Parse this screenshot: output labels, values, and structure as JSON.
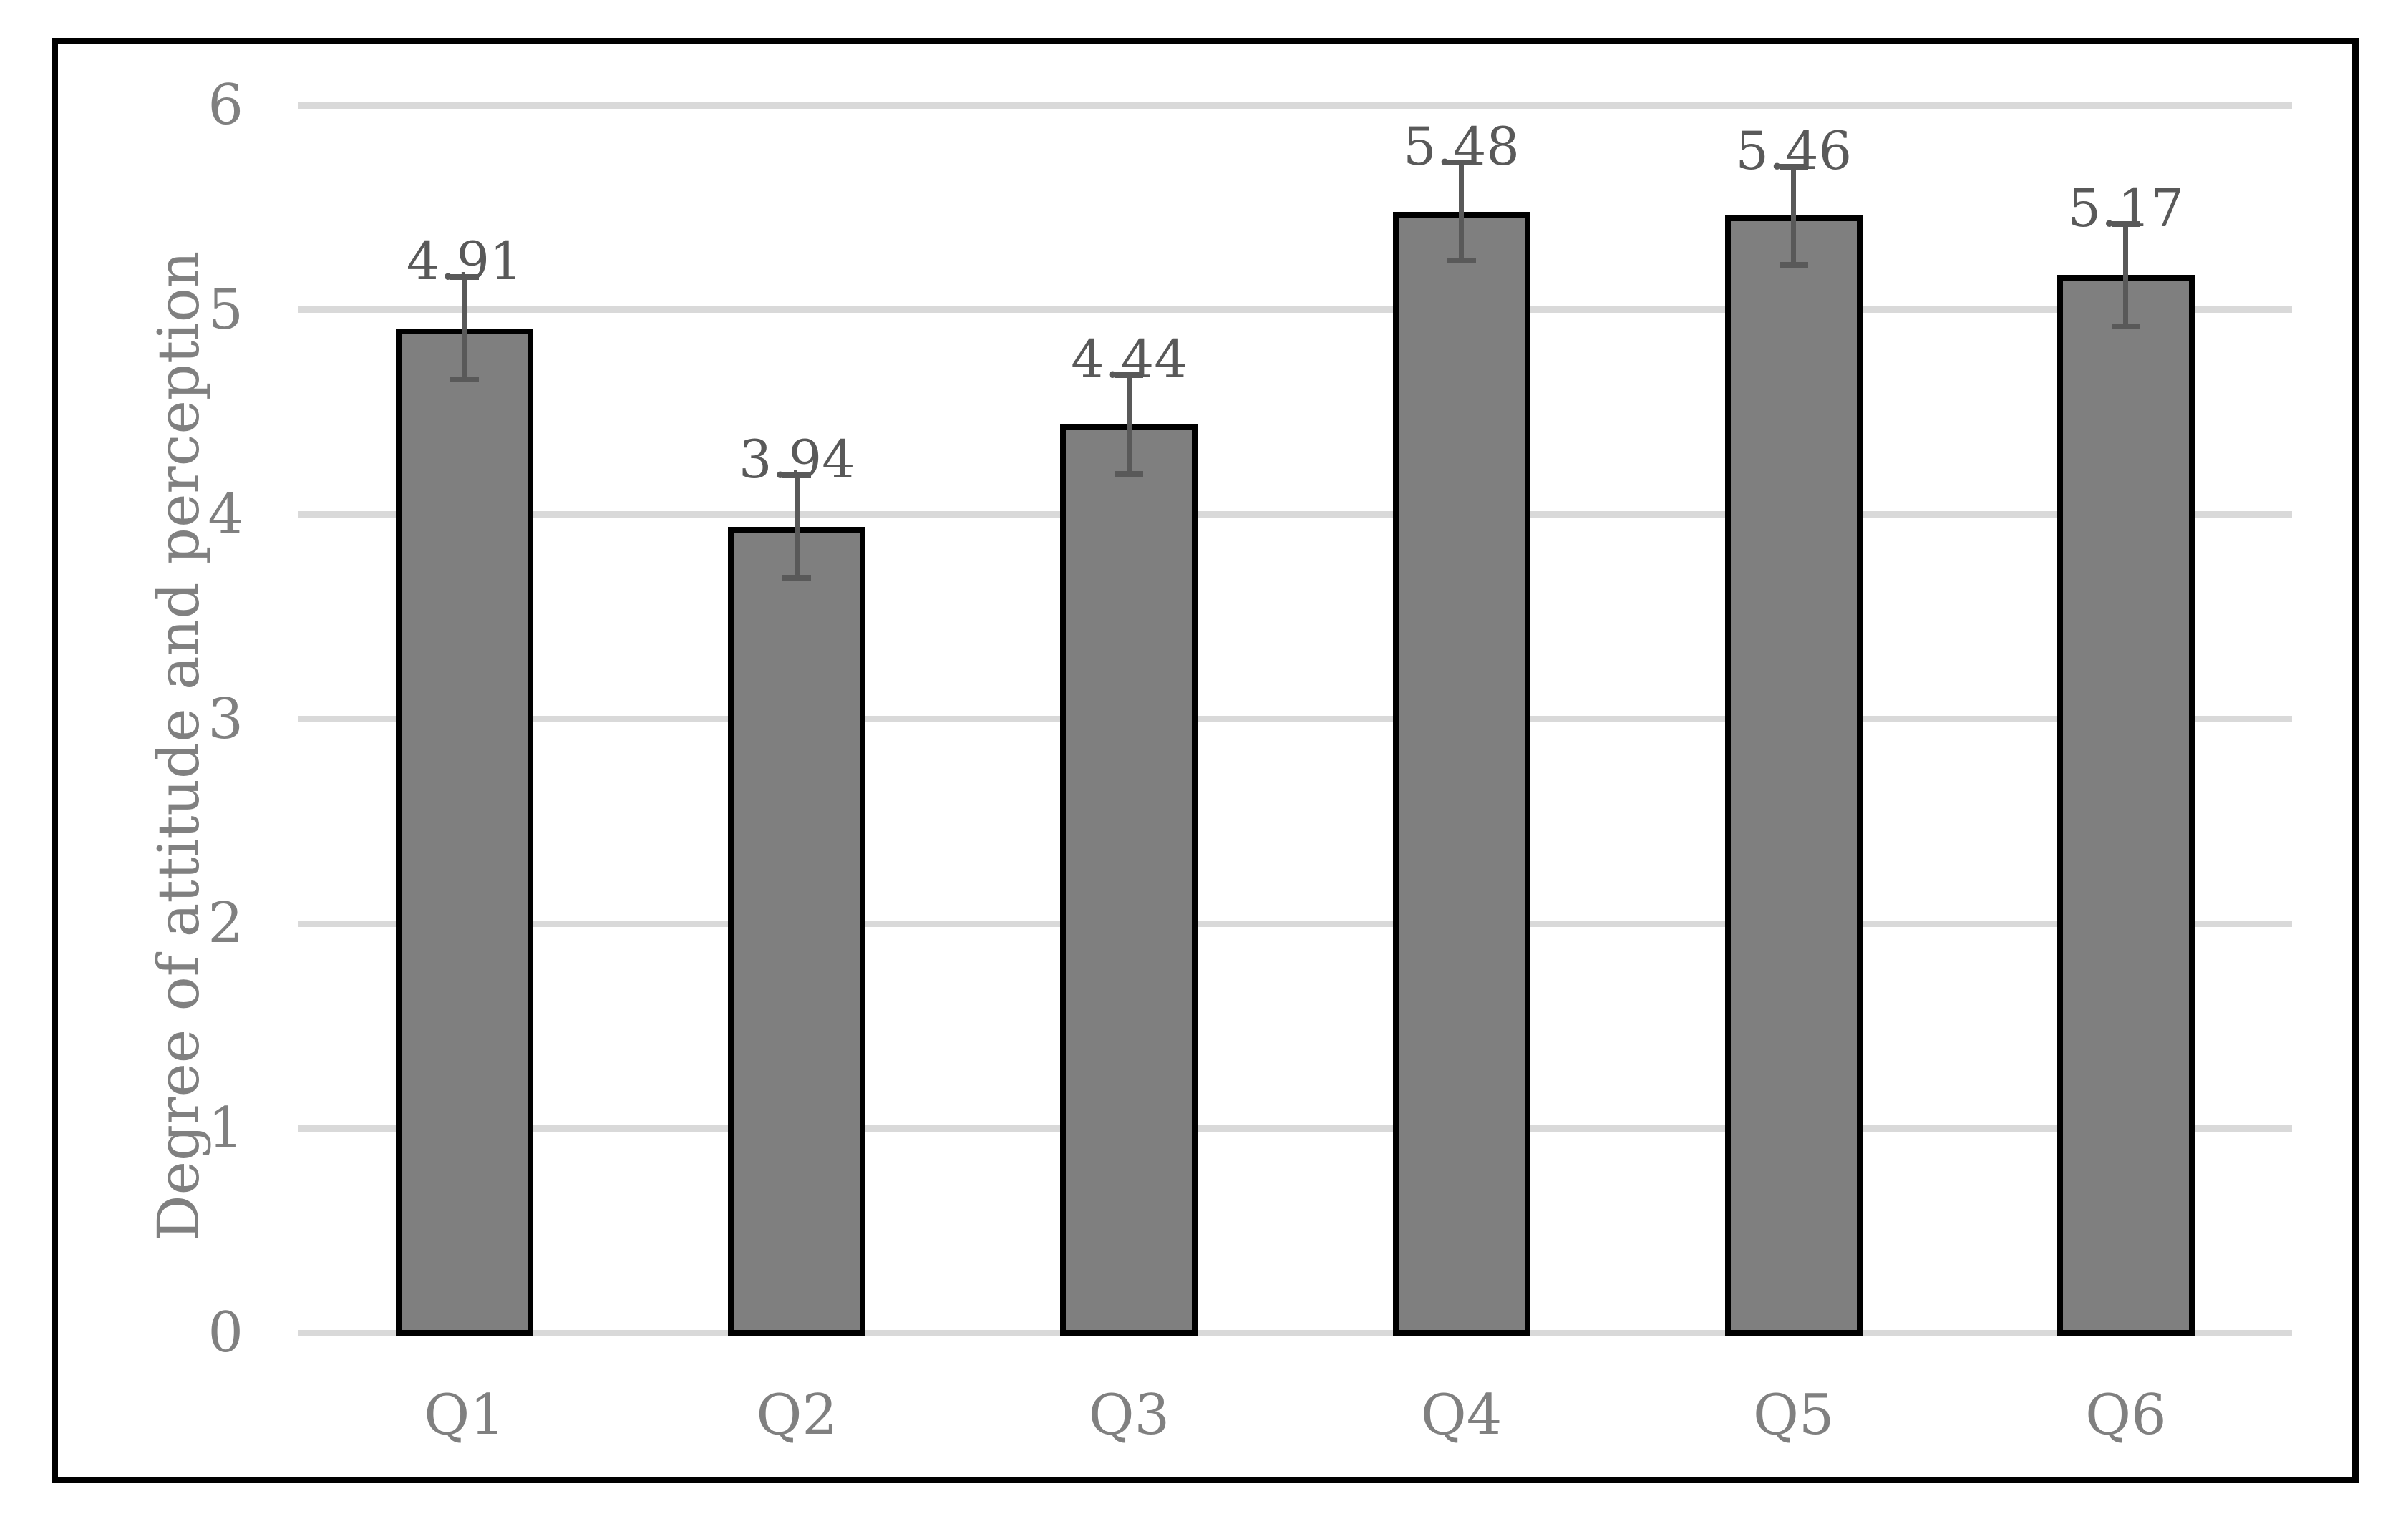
{
  "chart_data": {
    "type": "bar",
    "title": "",
    "xlabel": "",
    "ylabel": "Degree of attitude and perception",
    "categories": [
      "Q1",
      "Q2",
      "Q3",
      "Q4",
      "Q5",
      "Q6"
    ],
    "values": [
      4.91,
      3.94,
      4.44,
      5.48,
      5.46,
      5.17
    ],
    "data_labels": [
      "4.91",
      "3.94",
      "4.44",
      "5.48",
      "5.46",
      "5.17"
    ],
    "error_bars": [
      0.25,
      0.25,
      0.24,
      0.24,
      0.24,
      0.25
    ],
    "ylim": [
      0,
      6
    ],
    "y_ticks": [
      0,
      1,
      2,
      3,
      4,
      5,
      6
    ],
    "grid": "horizontal-only",
    "legend": "none",
    "colors": {
      "background": "#FFFFFF",
      "frame_border": "#000000",
      "gridline": "#D9D9D9",
      "bar_fill": "#7F7F7F",
      "bar_border": "#000000",
      "error_bar": "#595959",
      "axis_text": "#808080",
      "data_label_text": "#595959"
    }
  }
}
